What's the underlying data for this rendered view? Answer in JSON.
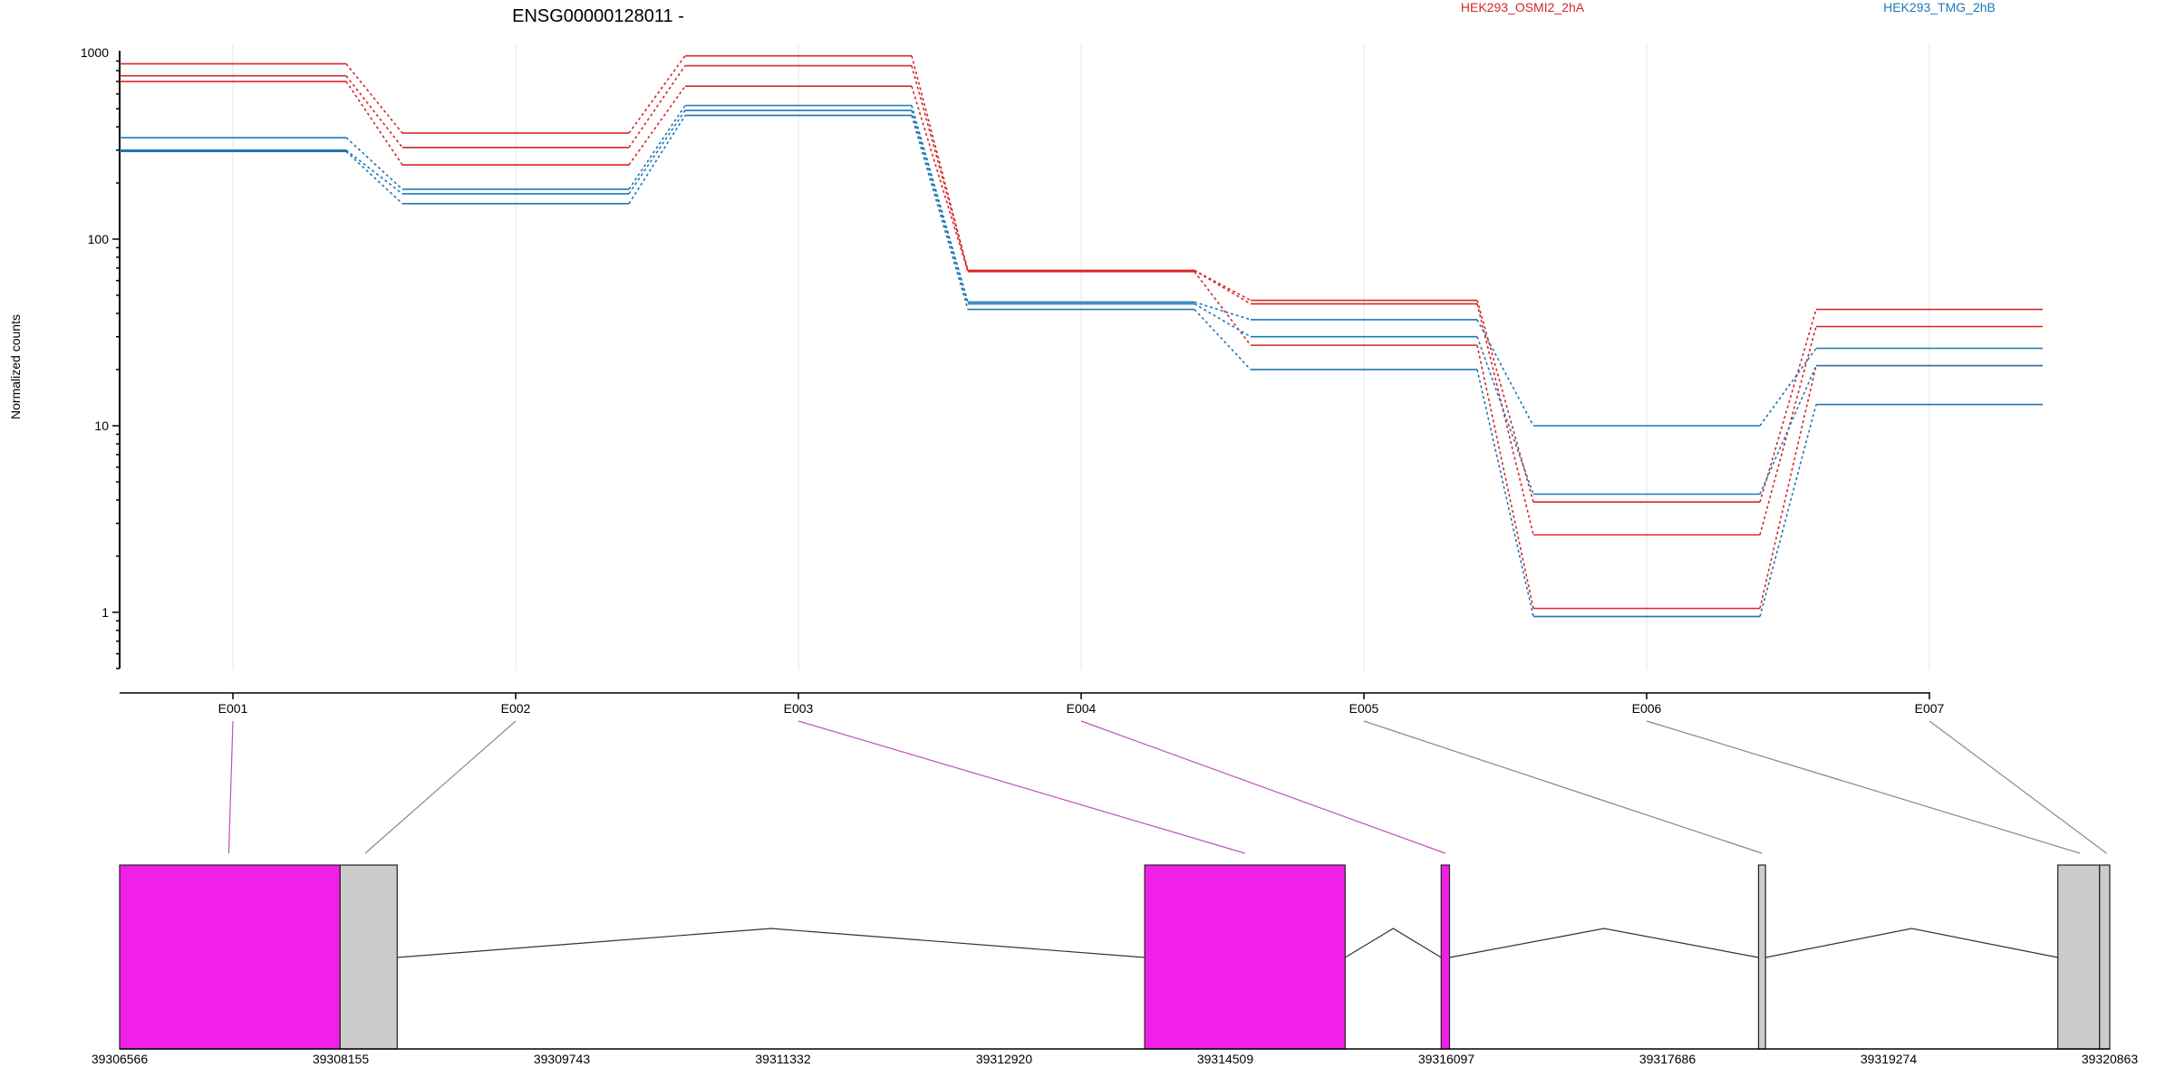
{
  "chart_data": [
    {
      "type": "line",
      "title": "ENSG00000128011 -",
      "xlabel": "",
      "ylabel": "Normalized counts",
      "yscale": "log",
      "ylim": [
        0.5,
        1000
      ],
      "yticks": [
        1,
        10,
        100,
        1000
      ],
      "ytick_labels": [
        "1",
        "10",
        "100",
        "1000"
      ],
      "categories": [
        "E001",
        "E002",
        "E003",
        "E004",
        "E005",
        "E006",
        "E007"
      ],
      "grid": "vertical",
      "legend": [
        {
          "name": "HEK293_OSMI2_2hA",
          "color": "#d62728"
        },
        {
          "name": "HEK293_TMG_2hB",
          "color": "#1f77b4"
        }
      ],
      "series": [
        {
          "group": "HEK293_OSMI2_2hA",
          "values": [
            870,
            370,
            960,
            68,
            47,
            3.9,
            42
          ]
        },
        {
          "group": "HEK293_OSMI2_2hA",
          "values": [
            750,
            310,
            850,
            68,
            45,
            2.6,
            34
          ]
        },
        {
          "group": "HEK293_OSMI2_2hA",
          "values": [
            700,
            250,
            660,
            67,
            27,
            1.05,
            21
          ]
        },
        {
          "group": "HEK293_TMG_2hB",
          "values": [
            350,
            185,
            520,
            46,
            37,
            10,
            26
          ]
        },
        {
          "group": "HEK293_TMG_2hB",
          "values": [
            300,
            175,
            490,
            45,
            30,
            4.3,
            21
          ]
        },
        {
          "group": "HEK293_TMG_2hB",
          "values": [
            295,
            155,
            460,
            42,
            20,
            0.95,
            13
          ]
        }
      ]
    },
    {
      "type": "gene-model",
      "strand": "-",
      "coordinate_ticks": [
        "39306566",
        "39308155",
        "39309743",
        "39311332",
        "39312920",
        "39314509",
        "39316097",
        "39317686",
        "39319274",
        "39320863"
      ],
      "xlim": [
        39306566,
        39320863
      ],
      "exons": [
        {
          "start": 39306566,
          "end": 39308150,
          "color": "#f020e8"
        },
        {
          "start": 39308150,
          "end": 39308560,
          "color": "#cccccc"
        },
        {
          "start": 39313930,
          "end": 39315370,
          "color": "#f020e8"
        },
        {
          "start": 39316060,
          "end": 39316120,
          "color": "#f020e8"
        },
        {
          "start": 39318340,
          "end": 39318390,
          "color": "#cccccc"
        },
        {
          "start": 39320490,
          "end": 39320790,
          "color": "#cccccc"
        },
        {
          "start": 39320790,
          "end": 39320863,
          "color": "#cccccc"
        }
      ],
      "exon_links": [
        {
          "exon": "E001",
          "target": 39307350,
          "color": "#c050c0"
        },
        {
          "exon": "E002",
          "target": 39308330,
          "color": "#888888"
        },
        {
          "exon": "E003",
          "target": 39314650,
          "color": "#c050c0"
        },
        {
          "exon": "E004",
          "target": 39316090,
          "color": "#c050c0"
        },
        {
          "exon": "E005",
          "target": 39318365,
          "color": "#888888"
        },
        {
          "exon": "E006",
          "target": 39320650,
          "color": "#888888"
        },
        {
          "exon": "E007",
          "target": 39320840,
          "color": "#888888"
        }
      ]
    }
  ]
}
